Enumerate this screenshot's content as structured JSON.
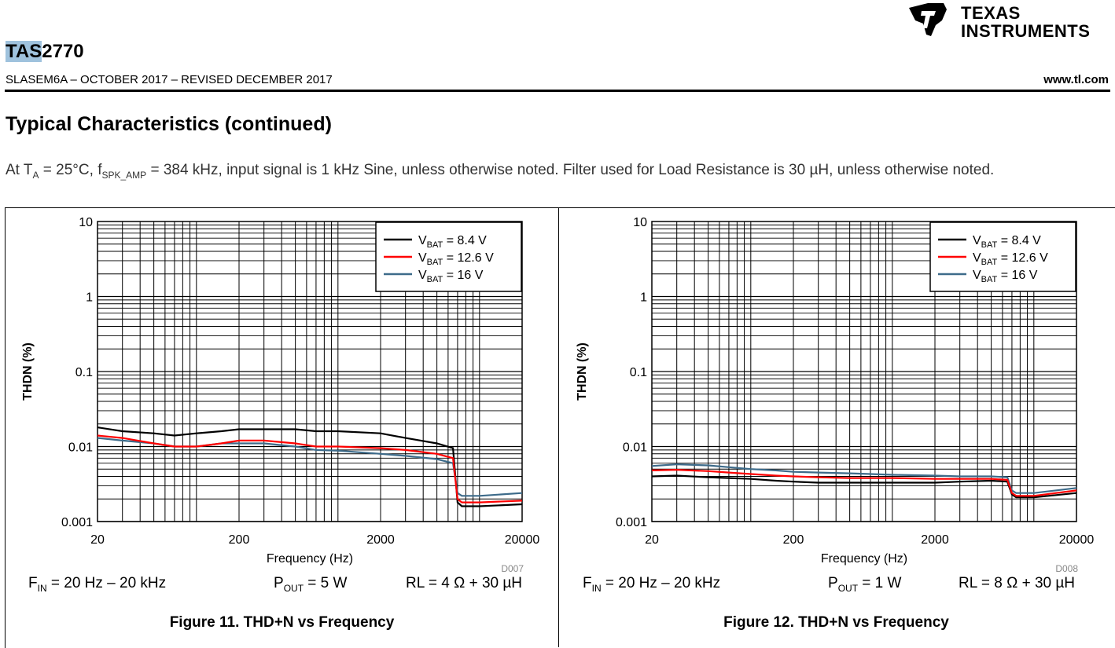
{
  "header": {
    "logo": {
      "line1": "TEXAS",
      "line2": "INSTRUMENTS",
      "icon": "ti-state-logo-icon"
    },
    "part_highlight": "TAS",
    "part_rest": "2770",
    "doc_id": "SLASEM6A – OCTOBER 2017 – REVISED DECEMBER 2017",
    "website": "www.tl.com"
  },
  "section": {
    "title": "Typical Characteristics (continued)",
    "conditions": "At T_A = 25°C, f_SPK_AMP = 384 kHz, input signal is 1 kHz Sine, unless otherwise noted. Filter used for Load Resistance is 30 µH, unless otherwise noted."
  },
  "colors": {
    "vbat_8_4": "#000000",
    "vbat_12_6": "#ff0000",
    "vbat_16": "#3d6b8a"
  },
  "figures": [
    {
      "caption": "Figure 11. THD+N vs Frequency",
      "code": "D007",
      "fin_label": "F",
      "fin_sub": "IN",
      "fin_text": " = 20 Hz – 20 kHz",
      "pout_label": "P",
      "pout_sub": "OUT",
      "pout_text": " = 5 W",
      "rl_text": "RL = 4 Ω + 30 µH"
    },
    {
      "caption": "Figure 12. THD+N vs Frequency",
      "code": "D008",
      "fin_label": "F",
      "fin_sub": "IN",
      "fin_text": " = 20 Hz – 20 kHz",
      "pout_label": "P",
      "pout_sub": "OUT",
      "pout_text": " = 1 W",
      "rl_text": "RL = 8 Ω + 30 µH"
    }
  ],
  "chart_data": [
    {
      "type": "line",
      "xlabel": "Frequency (Hz)",
      "ylabel": "THDN (%)",
      "x_scale": "log",
      "y_scale": "log",
      "xlim": [
        20,
        20000
      ],
      "ylim": [
        0.001,
        10
      ],
      "x_ticks": [
        "20",
        "200",
        "2000",
        "20000"
      ],
      "y_ticks": [
        "10",
        "1",
        "0.1",
        "0.01",
        "0.001"
      ],
      "grid": true,
      "legend_position": "top-right",
      "series": [
        {
          "name": "V_BAT = 8.4 V",
          "color_key": "vbat_8_4",
          "x": [
            20,
            30,
            50,
            70,
            100,
            150,
            200,
            300,
            500,
            700,
            1000,
            2000,
            3000,
            5000,
            6500,
            7000,
            7500,
            10000,
            20000
          ],
          "y": [
            0.018,
            0.016,
            0.015,
            0.014,
            0.015,
            0.016,
            0.017,
            0.017,
            0.017,
            0.016,
            0.016,
            0.015,
            0.013,
            0.011,
            0.0095,
            0.0018,
            0.0016,
            0.0016,
            0.0017
          ]
        },
        {
          "name": "V_BAT = 12.6 V",
          "color_key": "vbat_12_6",
          "x": [
            20,
            30,
            50,
            70,
            100,
            150,
            200,
            300,
            500,
            700,
            1000,
            2000,
            3000,
            5000,
            6500,
            7000,
            7500,
            10000,
            20000
          ],
          "y": [
            0.014,
            0.013,
            0.011,
            0.01,
            0.01,
            0.011,
            0.012,
            0.012,
            0.011,
            0.01,
            0.01,
            0.0095,
            0.009,
            0.008,
            0.007,
            0.002,
            0.0018,
            0.0018,
            0.0019
          ]
        },
        {
          "name": "V_BAT = 16 V",
          "color_key": "vbat_16",
          "x": [
            20,
            30,
            50,
            70,
            100,
            150,
            200,
            300,
            500,
            700,
            1000,
            2000,
            3000,
            5000,
            6500,
            7000,
            7500,
            10000,
            20000
          ],
          "y": [
            0.013,
            0.012,
            0.011,
            0.01,
            0.01,
            0.011,
            0.011,
            0.011,
            0.01,
            0.009,
            0.0088,
            0.008,
            0.0075,
            0.0068,
            0.006,
            0.0024,
            0.0022,
            0.0022,
            0.0024
          ]
        }
      ]
    },
    {
      "type": "line",
      "xlabel": "Frequency (Hz)",
      "ylabel": "THDN (%)",
      "x_scale": "log",
      "y_scale": "log",
      "xlim": [
        20,
        20000
      ],
      "ylim": [
        0.001,
        10
      ],
      "x_ticks": [
        "20",
        "200",
        "2000",
        "20000"
      ],
      "y_ticks": [
        "10",
        "1",
        "0.1",
        "0.01",
        "0.001"
      ],
      "grid": true,
      "legend_position": "top-right",
      "series": [
        {
          "name": "V_BAT = 8.4 V",
          "color_key": "vbat_8_4",
          "x": [
            20,
            30,
            50,
            70,
            100,
            150,
            200,
            300,
            500,
            700,
            1000,
            2000,
            3000,
            5000,
            6500,
            7000,
            7500,
            10000,
            20000
          ],
          "y": [
            0.004,
            0.0041,
            0.0039,
            0.0038,
            0.0037,
            0.0035,
            0.0034,
            0.0033,
            0.0033,
            0.0033,
            0.0033,
            0.0033,
            0.0034,
            0.0035,
            0.0034,
            0.0023,
            0.0021,
            0.0021,
            0.0024
          ]
        },
        {
          "name": "V_BAT = 12.6 V",
          "color_key": "vbat_12_6",
          "x": [
            20,
            30,
            50,
            70,
            100,
            150,
            200,
            300,
            500,
            700,
            1000,
            2000,
            3000,
            5000,
            6500,
            7000,
            7500,
            10000,
            20000
          ],
          "y": [
            0.0048,
            0.0049,
            0.0047,
            0.0045,
            0.0043,
            0.0041,
            0.004,
            0.0039,
            0.0038,
            0.0038,
            0.0038,
            0.0037,
            0.0037,
            0.0037,
            0.0036,
            0.0024,
            0.0022,
            0.0022,
            0.0026
          ]
        },
        {
          "name": "V_BAT = 16 V",
          "color_key": "vbat_16",
          "x": [
            20,
            30,
            50,
            70,
            100,
            150,
            200,
            300,
            500,
            700,
            1000,
            2000,
            3000,
            5000,
            6500,
            7000,
            7500,
            10000,
            20000
          ],
          "y": [
            0.0055,
            0.0058,
            0.0056,
            0.0053,
            0.005,
            0.0048,
            0.0046,
            0.0045,
            0.0044,
            0.0043,
            0.0042,
            0.0041,
            0.004,
            0.004,
            0.0039,
            0.0026,
            0.0024,
            0.0024,
            0.0028
          ]
        }
      ]
    }
  ]
}
